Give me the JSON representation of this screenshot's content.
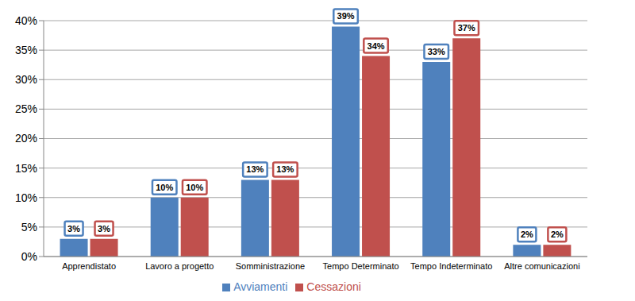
{
  "chart_data": {
    "type": "bar",
    "categories": [
      "Apprendistato",
      "Lavoro a progetto",
      "Somministrazione",
      "Tempo Determinato",
      "Tempo Indeterminato",
      "Altre comunicazioni"
    ],
    "series": [
      {
        "name": "Avviamenti",
        "color": "#4f81bd",
        "values": [
          3,
          10,
          13,
          39,
          33,
          2
        ],
        "value_labels": [
          "3%",
          "10%",
          "13%",
          "39%",
          "33%",
          "2%"
        ]
      },
      {
        "name": "Cessazioni",
        "color": "#c0504d",
        "values": [
          3,
          10,
          13,
          34,
          37,
          2
        ],
        "value_labels": [
          "3%",
          "10%",
          "13%",
          "34%",
          "37%",
          "2%"
        ]
      }
    ],
    "ylim": [
      0,
      40
    ],
    "yticks": [
      {
        "value": 0,
        "label": "0%"
      },
      {
        "value": 5,
        "label": "5%"
      },
      {
        "value": 10,
        "label": "10%"
      },
      {
        "value": 15,
        "label": "15%"
      },
      {
        "value": 20,
        "label": "20%"
      },
      {
        "value": 25,
        "label": "25%"
      },
      {
        "value": 30,
        "label": "30%"
      },
      {
        "value": 35,
        "label": "35%"
      },
      {
        "value": 40,
        "label": "40%"
      }
    ],
    "grid": true,
    "legend": "bottom",
    "data_labels": true
  }
}
